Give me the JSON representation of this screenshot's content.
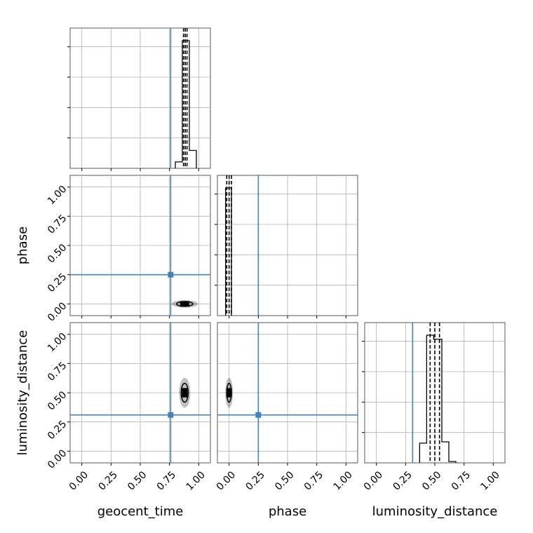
{
  "chart_data": {
    "type": "corner",
    "parameters": [
      "geocent_time",
      "phase",
      "luminosity_distance"
    ],
    "axis_labels": {
      "geocent_time": "geocent_time",
      "phase": "phase",
      "luminosity_distance": "luminosity_distance"
    },
    "range": [
      -0.1,
      1.1
    ],
    "tick_values": [
      0.0,
      0.25,
      0.5,
      0.75,
      1.0
    ],
    "tick_labels": [
      "0.00",
      "0.25",
      "0.50",
      "0.75",
      "1.00"
    ],
    "grid": true,
    "truths": {
      "geocent_time": 0.76,
      "phase": 0.25,
      "luminosity_distance": 0.31
    },
    "truth_color": "#4682b4",
    "hist_color": "#000000",
    "marginals": {
      "geocent_time": {
        "bin_edges": [
          0.8,
          0.86,
          0.92,
          0.98
        ],
        "counts": [
          0.05,
          1.0,
          0.14
        ],
        "quantiles": [
          0.87,
          0.885,
          0.9
        ]
      },
      "phase": {
        "bin_edges": [
          -0.03,
          0.02
        ],
        "counts": [
          1.0
        ],
        "quantiles": [
          -0.02,
          0.0,
          0.02
        ]
      },
      "luminosity_distance": {
        "bin_edges": [
          0.37,
          0.43,
          0.49,
          0.56,
          0.62,
          0.68
        ],
        "counts": [
          0.15,
          0.97,
          0.94,
          0.16,
          0.01
        ],
        "quantiles": [
          0.46,
          0.5,
          0.54
        ]
      }
    },
    "joint": {
      "phase_vs_geocent_time": {
        "x_center": 0.88,
        "y_center": 0.0,
        "x_spread": 0.07,
        "y_spread": 0.02
      },
      "luminosity_distance_vs_geocent_time": {
        "x_center": 0.88,
        "y_center": 0.5,
        "x_spread": 0.03,
        "y_spread": 0.08
      },
      "luminosity_distance_vs_phase": {
        "x_center": 0.0,
        "y_center": 0.5,
        "x_spread": 0.02,
        "y_spread": 0.08
      }
    }
  }
}
